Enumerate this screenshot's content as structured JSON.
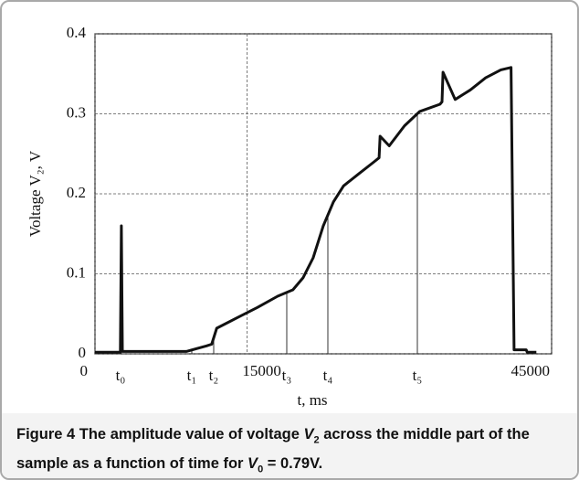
{
  "chart_data": {
    "type": "line",
    "xlabel": "t,  ms",
    "ylabel": "Voltage V₂,  V",
    "xlim": [
      0,
      45000
    ],
    "ylim": [
      0,
      0.4
    ],
    "xticks": [
      0,
      15000,
      45000
    ],
    "yticks": [
      0,
      0.1,
      0.2,
      0.3,
      0.4
    ],
    "grid": true,
    "color": "#111111",
    "x": [
      0,
      2500,
      2600,
      2700,
      9000,
      11000,
      11500,
      12000,
      14000,
      16000,
      18000,
      19500,
      20500,
      21500,
      22500,
      23500,
      24500,
      26000,
      27500,
      28000,
      28100,
      29000,
      30500,
      32000,
      34000,
      34200,
      34300,
      35500,
      37000,
      38500,
      40000,
      41000,
      41300,
      42500,
      42600,
      43500
    ],
    "values": [
      0.002,
      0.002,
      0.16,
      0.003,
      0.003,
      0.01,
      0.012,
      0.032,
      0.045,
      0.058,
      0.072,
      0.08,
      0.095,
      0.12,
      0.16,
      0.19,
      0.21,
      0.225,
      0.24,
      0.245,
      0.272,
      0.26,
      0.285,
      0.303,
      0.312,
      0.315,
      0.352,
      0.318,
      0.33,
      0.345,
      0.355,
      0.358,
      0.005,
      0.005,
      0.002,
      0.002
    ],
    "annotations": [
      {
        "text": "t₀",
        "x": 2520
      },
      {
        "text": "t₁",
        "x": 9540
      },
      {
        "text": "t₂",
        "x": 11700
      },
      {
        "text": "t₃",
        "x": 18900
      },
      {
        "text": "t₄",
        "x": 22950
      },
      {
        "text": "t₅",
        "x": 31770
      }
    ],
    "caption": [
      "Figure 4",
      " The amplitude value of voltage ",
      "V",
      "2",
      " across the middle part of the sample as a function of time for ",
      "V",
      "0",
      " = 0.79V."
    ]
  }
}
